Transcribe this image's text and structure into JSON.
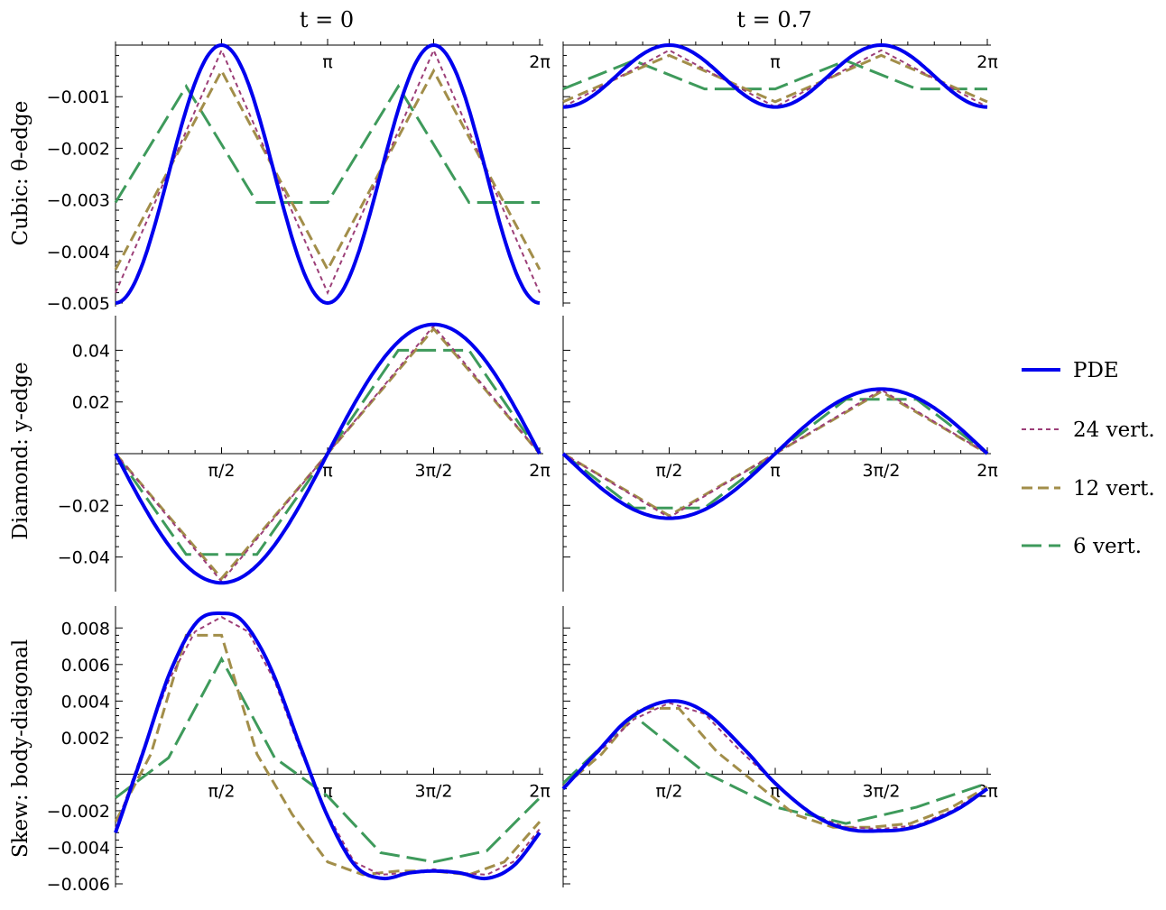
{
  "column_titles": [
    "t = 0",
    "t = 0.7"
  ],
  "row_titles": [
    "Cubic:  θ-edge",
    "Diamond:  y-edge",
    "Skew:  body-diagonal"
  ],
  "legend": [
    {
      "label": "PDE",
      "color": "#0000ee",
      "dash": "solid"
    },
    {
      "label": "24 vert.",
      "color": "#9c3f78",
      "dash": "short"
    },
    {
      "label": "12 vert.",
      "color": "#a28e4a",
      "dash": "medium"
    },
    {
      "label": "6 vert.",
      "color": "#3e9a5b",
      "dash": "long"
    }
  ],
  "chart_data": [
    {
      "type": "line",
      "row": 0,
      "col": 0,
      "xlim": [
        0,
        6.2832
      ],
      "ylim": [
        -0.005,
        0.0
      ],
      "x_ticks": [
        {
          "value": 3.1416,
          "label": "π"
        },
        {
          "value": 6.2832,
          "label": "2π"
        }
      ],
      "y_ticks": [
        {
          "value": -0.001,
          "label": "−0.001"
        },
        {
          "value": -0.002,
          "label": "−0.002"
        },
        {
          "value": -0.003,
          "label": "−0.003"
        },
        {
          "value": -0.004,
          "label": "−0.004"
        },
        {
          "value": -0.005,
          "label": "−0.005"
        }
      ],
      "pde": {
        "mean": -0.0025,
        "amp": 0.0025,
        "mode": "cos2"
      },
      "series": [
        {
          "n": 24,
          "y": [
            -0.0048,
            -0.0001,
            -0.0048,
            -0.0001,
            -0.0048
          ]
        },
        {
          "n": 12,
          "y": [
            -0.00435,
            -0.0005,
            -0.00435,
            -0.0005,
            -0.00435
          ]
        },
        {
          "n": 6,
          "y": [
            -0.00305,
            -0.0008,
            -0.00305,
            -0.00305,
            -0.0008,
            -0.00305,
            -0.00305
          ]
        }
      ]
    },
    {
      "type": "line",
      "row": 0,
      "col": 1,
      "xlim": [
        0,
        6.2832
      ],
      "ylim": [
        -0.005,
        0.0
      ],
      "x_ticks": [
        {
          "value": 3.1416,
          "label": "π"
        },
        {
          "value": 6.2832,
          "label": "2π"
        }
      ],
      "y_ticks": [
        {
          "value": -0.001,
          "label": ""
        },
        {
          "value": -0.002,
          "label": ""
        },
        {
          "value": -0.003,
          "label": ""
        },
        {
          "value": -0.004,
          "label": ""
        },
        {
          "value": -0.005,
          "label": ""
        }
      ],
      "pde": {
        "mean": -0.0006,
        "amp": 0.0006,
        "mode": "cos2"
      },
      "series": [
        {
          "n": 24,
          "y": [
            -0.0012,
            -0.0001,
            -0.0012,
            -0.0001,
            -0.0012
          ]
        },
        {
          "n": 12,
          "y": [
            -0.0011,
            -0.0002,
            -0.0011,
            -0.0002,
            -0.0011
          ]
        },
        {
          "n": 6,
          "y": [
            -0.00085,
            -0.0003,
            -0.00085,
            -0.00085,
            -0.0003,
            -0.00085,
            -0.00085
          ]
        }
      ]
    },
    {
      "type": "line",
      "row": 1,
      "col": 0,
      "xlim": [
        0,
        6.2832
      ],
      "ylim": [
        -0.052,
        0.052
      ],
      "x_ticks": [
        {
          "value": 1.5708,
          "label": "π/2"
        },
        {
          "value": 3.1416,
          "label": "π"
        },
        {
          "value": 4.7124,
          "label": "3π/2"
        },
        {
          "value": 6.2832,
          "label": "2π"
        }
      ],
      "y_ticks": [
        {
          "value": 0.04,
          "label": "0.04"
        },
        {
          "value": 0.02,
          "label": "0.02"
        },
        {
          "value": -0.02,
          "label": "−0.02"
        },
        {
          "value": -0.04,
          "label": "−0.04"
        }
      ],
      "pde": {
        "amp": 0.05,
        "mode": "negsin"
      },
      "series": [
        {
          "n": 24,
          "y": [
            0,
            -0.0495,
            0,
            0.0495,
            0
          ]
        },
        {
          "n": 12,
          "y": [
            0,
            -0.0483,
            0,
            0.0483,
            0
          ]
        },
        {
          "n": 6,
          "y": [
            0,
            -0.039,
            -0.039,
            0,
            0.04,
            0.04,
            0
          ]
        }
      ]
    },
    {
      "type": "line",
      "row": 1,
      "col": 1,
      "xlim": [
        0,
        6.2832
      ],
      "ylim": [
        -0.052,
        0.052
      ],
      "x_ticks": [
        {
          "value": 1.5708,
          "label": "π/2"
        },
        {
          "value": 3.1416,
          "label": "π"
        },
        {
          "value": 4.7124,
          "label": "3π/2"
        },
        {
          "value": 6.2832,
          "label": "2π"
        }
      ],
      "y_ticks": [
        {
          "value": 0.04,
          "label": ""
        },
        {
          "value": 0.02,
          "label": ""
        },
        {
          "value": -0.02,
          "label": ""
        },
        {
          "value": -0.04,
          "label": ""
        }
      ],
      "pde": {
        "amp": 0.025,
        "mode": "negsin"
      },
      "series": [
        {
          "n": 24,
          "y": [
            0,
            -0.0247,
            0,
            0.0247,
            0
          ]
        },
        {
          "n": 12,
          "y": [
            0,
            -0.024,
            0,
            0.024,
            0
          ]
        },
        {
          "n": 6,
          "y": [
            0,
            -0.021,
            -0.021,
            0,
            0.021,
            0.021,
            0
          ]
        }
      ]
    },
    {
      "type": "line",
      "row": 2,
      "col": 0,
      "xlim": [
        0,
        6.2832
      ],
      "ylim": [
        -0.006,
        0.009
      ],
      "x_ticks": [
        {
          "value": 1.5708,
          "label": "π/2"
        },
        {
          "value": 3.1416,
          "label": "π"
        },
        {
          "value": 4.7124,
          "label": "3π/2"
        },
        {
          "value": 6.2832,
          "label": "2π"
        }
      ],
      "y_ticks": [
        {
          "value": 0.008,
          "label": "0.008"
        },
        {
          "value": 0.006,
          "label": "0.006"
        },
        {
          "value": 0.004,
          "label": "0.004"
        },
        {
          "value": 0.002,
          "label": "0.002"
        },
        {
          "value": -0.002,
          "label": "−0.002"
        },
        {
          "value": -0.004,
          "label": "−0.004"
        },
        {
          "value": -0.006,
          "label": "−0.006"
        }
      ],
      "pde": {
        "points": [
          [
            0,
            -0.0032
          ],
          [
            0.4,
            0.0011
          ],
          [
            0.8,
            0.0055
          ],
          [
            1.2,
            0.0083
          ],
          [
            1.5708,
            0.0088
          ],
          [
            1.9,
            0.0083
          ],
          [
            2.3,
            0.0058
          ],
          [
            2.75,
            0.0014
          ],
          [
            3.1416,
            -0.0023
          ],
          [
            3.55,
            -0.005
          ],
          [
            3.95,
            -0.0057
          ],
          [
            4.35,
            -0.0054
          ],
          [
            4.7124,
            -0.0053
          ],
          [
            5.1,
            -0.0054
          ],
          [
            5.5,
            -0.0057
          ],
          [
            5.9,
            -0.005
          ],
          [
            6.2832,
            -0.0032
          ]
        ]
      },
      "series": [
        {
          "n": 24,
          "y": [
            -0.003,
            0.0012,
            0.0051,
            0.0078,
            0.0086,
            0.0078,
            0.0051,
            0.0012,
            -0.0022,
            -0.0048,
            -0.0055,
            -0.0054,
            -0.0052,
            -0.0054,
            -0.0055,
            -0.0048,
            -0.003
          ]
        },
        {
          "n": 12,
          "y": [
            -0.0026,
            0.0011,
            0.0076,
            0.0076,
            0.0011,
            -0.0022,
            -0.0048,
            -0.0055,
            -0.0053,
            -0.0053,
            -0.0055,
            -0.0048,
            -0.0026
          ]
        },
        {
          "n": 6,
          "y": [
            -0.0013,
            0.0009,
            0.0063,
            0.0009,
            -0.0012,
            -0.0043,
            -0.0048,
            -0.0042,
            -0.0013
          ]
        }
      ]
    },
    {
      "type": "line",
      "row": 2,
      "col": 1,
      "xlim": [
        0,
        6.2832
      ],
      "ylim": [
        -0.006,
        0.009
      ],
      "x_ticks": [
        {
          "value": 1.5708,
          "label": "π/2"
        },
        {
          "value": 3.1416,
          "label": "π"
        },
        {
          "value": 4.7124,
          "label": "3π/2"
        },
        {
          "value": 6.2832,
          "label": "2π"
        }
      ],
      "y_ticks": [
        {
          "value": 0.008,
          "label": ""
        },
        {
          "value": 0.006,
          "label": ""
        },
        {
          "value": 0.004,
          "label": ""
        },
        {
          "value": 0.002,
          "label": ""
        },
        {
          "value": -0.002,
          "label": ""
        },
        {
          "value": -0.004,
          "label": ""
        },
        {
          "value": -0.006,
          "label": ""
        }
      ],
      "pde": {
        "points": [
          [
            0,
            -0.0008
          ],
          [
            0.5,
            0.0012
          ],
          [
            1.0,
            0.0031
          ],
          [
            1.5708,
            0.004
          ],
          [
            2.1,
            0.0034
          ],
          [
            2.7,
            0.0013
          ],
          [
            3.1416,
            -0.0005
          ],
          [
            3.7,
            -0.0022
          ],
          [
            4.2,
            -0.003
          ],
          [
            4.7124,
            -0.0031
          ],
          [
            5.2,
            -0.0029
          ],
          [
            5.8,
            -0.002
          ],
          [
            6.2832,
            -0.0008
          ]
        ]
      },
      "series": [
        {
          "n": 24,
          "y": [
            -0.0008,
            0.0012,
            0.003,
            0.0039,
            0.0033,
            0.0013,
            -0.0005,
            -0.0022,
            -0.0029,
            -0.003,
            -0.0028,
            -0.002,
            -0.0008
          ]
        },
        {
          "n": 12,
          "y": [
            -0.0007,
            0.0011,
            0.0036,
            0.0036,
            0.0012,
            -0.0005,
            -0.0022,
            -0.0029,
            -0.0029,
            -0.0027,
            -0.0019,
            -0.0007
          ]
        },
        {
          "n": 6,
          "y": [
            -0.0005,
            0.0032,
            0.0001,
            -0.0018,
            -0.0027,
            -0.0018,
            -0.0005
          ]
        }
      ]
    }
  ]
}
